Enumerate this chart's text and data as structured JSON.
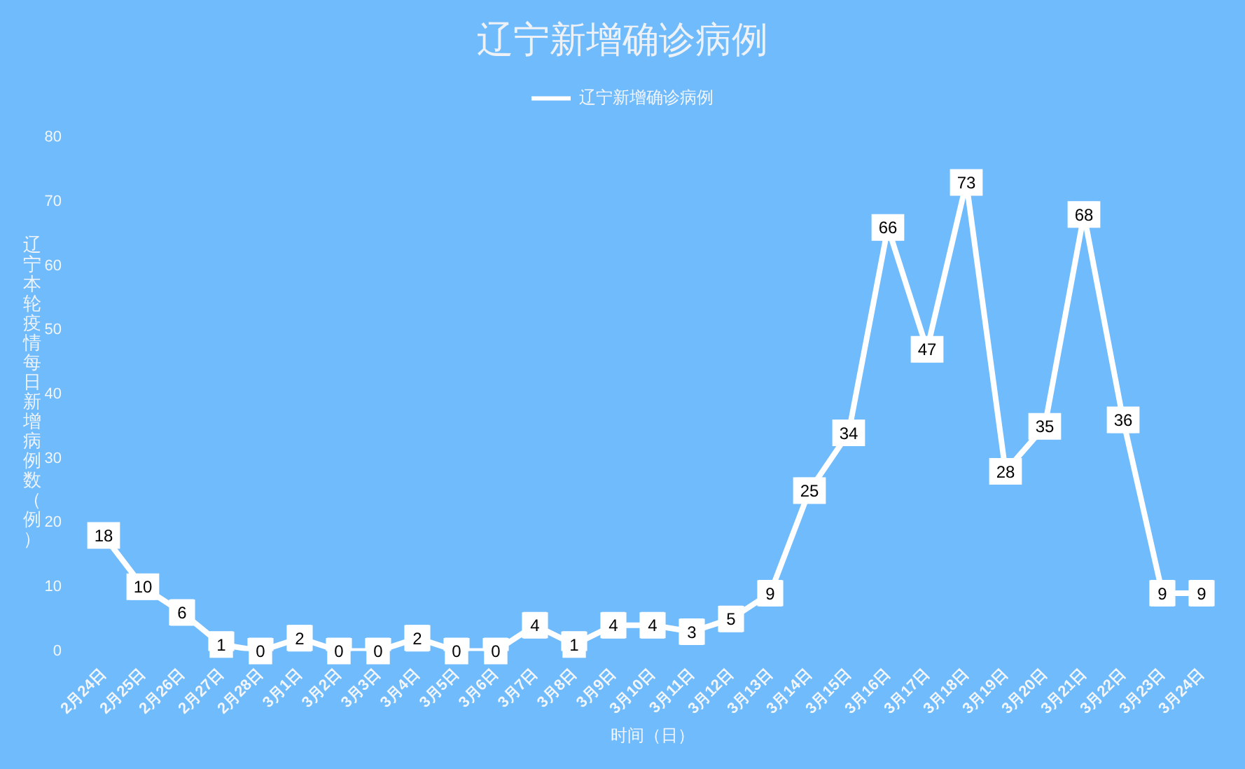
{
  "chart_data": {
    "type": "line",
    "title": "辽宁新增确诊病例",
    "xlabel": "时间（日）",
    "ylabel": "辽宁本轮疫情每日新增病例数（例）",
    "categories": [
      "2月24日",
      "2月25日",
      "2月26日",
      "2月27日",
      "2月28日",
      "3月1日",
      "3月2日",
      "3月3日",
      "3月4日",
      "3月5日",
      "3月6日",
      "3月7日",
      "3月8日",
      "3月9日",
      "3月10日",
      "3月11日",
      "3月12日",
      "3月13日",
      "3月14日",
      "3月15日",
      "3月16日",
      "3月17日",
      "3月18日",
      "3月19日",
      "3月20日",
      "3月21日",
      "3月22日",
      "3月23日",
      "3月24日"
    ],
    "series": [
      {
        "name": "辽宁新增确诊病例",
        "color": "#ffffff",
        "values": [
          18,
          10,
          6,
          1,
          0,
          2,
          0,
          0,
          2,
          0,
          0,
          4,
          1,
          4,
          4,
          3,
          5,
          9,
          25,
          34,
          66,
          47,
          73,
          28,
          35,
          68,
          36,
          9,
          9
        ]
      }
    ],
    "ylim": [
      0,
      80
    ],
    "yticks": [
      0,
      10,
      20,
      30,
      40,
      50,
      60,
      70,
      80
    ],
    "grid": false,
    "legend": "top",
    "marker": "square",
    "line_style": "solid",
    "data_labels": true
  }
}
